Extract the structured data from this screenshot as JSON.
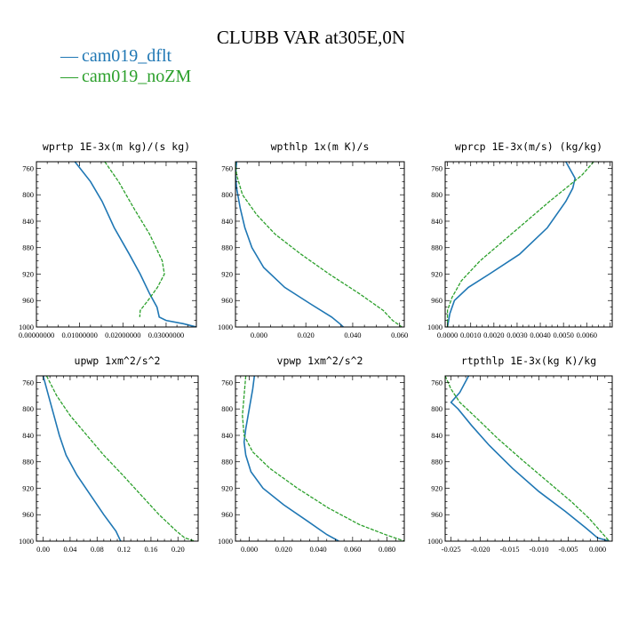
{
  "title": "CLUBB VAR at305E,0N",
  "legend": [
    {
      "label": "cam019_dflt",
      "color": "#1f77b4"
    },
    {
      "label": "cam019_noZM",
      "color": "#2ca02c"
    }
  ],
  "chart_data": [
    {
      "type": "line",
      "title": "wprtp  1E-3x(m kg)/(s kg)",
      "ylim": [
        1000,
        750
      ],
      "ylabel": "",
      "xlabel": "",
      "xlim": [
        0.0,
        0.037
      ],
      "xticks": [
        0.0,
        0.01,
        0.02,
        0.03
      ],
      "xtick_labels": [
        "0.00000000",
        "0.01000000",
        "0.02000000",
        "0.03000000"
      ],
      "yticks": [
        760,
        800,
        840,
        880,
        920,
        960,
        1000
      ],
      "series": [
        {
          "name": "cam019_dflt",
          "color": "#1f77b4",
          "dash": false,
          "points": [
            [
              0.0089,
              750
            ],
            [
              0.0125,
              780
            ],
            [
              0.0152,
              810
            ],
            [
              0.018,
              850
            ],
            [
              0.0215,
              890
            ],
            [
              0.024,
              920
            ],
            [
              0.0262,
              950
            ],
            [
              0.0279,
              970
            ],
            [
              0.0284,
              985
            ],
            [
              0.03,
              990
            ],
            [
              0.034,
              995
            ],
            [
              0.037,
              1000
            ]
          ]
        },
        {
          "name": "cam019_noZM",
          "color": "#2ca02c",
          "dash": true,
          "points": [
            [
              0.0158,
              750
            ],
            [
              0.019,
              780
            ],
            [
              0.0225,
              820
            ],
            [
              0.0262,
              860
            ],
            [
              0.0291,
              900
            ],
            [
              0.0296,
              920
            ],
            [
              0.028,
              940
            ],
            [
              0.0258,
              960
            ],
            [
              0.024,
              975
            ],
            [
              0.0239,
              985
            ]
          ]
        }
      ]
    },
    {
      "type": "line",
      "title": "wpthlp  1x(m K)/s",
      "ylim": [
        1000,
        750
      ],
      "ylabel": "",
      "xlabel": "",
      "xlim": [
        -0.01,
        0.062
      ],
      "xticks": [
        0.0,
        0.02,
        0.04,
        0.06
      ],
      "xtick_labels": [
        "0.000",
        "0.020",
        "0.040",
        "0.060"
      ],
      "yticks": [
        760,
        800,
        840,
        880,
        920,
        960,
        1000
      ],
      "series": [
        {
          "name": "cam019_dflt",
          "color": "#1f77b4",
          "dash": false,
          "points": [
            [
              -0.0095,
              750
            ],
            [
              -0.01,
              770
            ],
            [
              -0.0095,
              790
            ],
            [
              -0.008,
              820
            ],
            [
              -0.006,
              850
            ],
            [
              -0.003,
              880
            ],
            [
              0.002,
              910
            ],
            [
              0.011,
              940
            ],
            [
              0.022,
              965
            ],
            [
              0.031,
              985
            ],
            [
              0.0345,
              995
            ],
            [
              0.036,
              1000
            ]
          ]
        },
        {
          "name": "cam019_noZM",
          "color": "#2ca02c",
          "dash": true,
          "points": [
            [
              -0.01,
              750
            ],
            [
              -0.0095,
              770
            ],
            [
              -0.007,
              800
            ],
            [
              -0.001,
              830
            ],
            [
              0.007,
              860
            ],
            [
              0.018,
              890
            ],
            [
              0.03,
              920
            ],
            [
              0.043,
              950
            ],
            [
              0.053,
              975
            ],
            [
              0.057,
              990
            ],
            [
              0.061,
              1000
            ]
          ]
        }
      ]
    },
    {
      "type": "line",
      "title": "wprcp  1E-3x(m/s) (kg/kg)",
      "ylim": [
        1000,
        750
      ],
      "ylabel": "",
      "xlabel": "",
      "xlim": [
        -0.0001,
        0.0071
      ],
      "xticks": [
        0.0,
        0.001,
        0.002,
        0.003,
        0.004,
        0.005,
        0.006
      ],
      "xtick_labels": [
        "0.0000",
        "0.0010",
        "0.0020",
        "0.0030",
        "0.0040",
        "0.0050",
        "0.0060"
      ],
      "yticks": [
        760,
        800,
        840,
        880,
        920,
        960,
        1000
      ],
      "series": [
        {
          "name": "cam019_dflt",
          "color": "#1f77b4",
          "dash": false,
          "points": [
            [
              0.0051,
              750
            ],
            [
              0.0055,
              775
            ],
            [
              0.0054,
              790
            ],
            [
              0.0051,
              810
            ],
            [
              0.0043,
              850
            ],
            [
              0.0031,
              890
            ],
            [
              0.0018,
              920
            ],
            [
              0.0009,
              940
            ],
            [
              0.0003,
              960
            ],
            [
              0.0001,
              980
            ],
            [
              0.0,
              1000
            ]
          ]
        },
        {
          "name": "cam019_noZM",
          "color": "#2ca02c",
          "dash": true,
          "points": [
            [
              0.0063,
              750
            ],
            [
              0.0058,
              770
            ],
            [
              0.0051,
              790
            ],
            [
              0.0044,
              810
            ],
            [
              0.0034,
              840
            ],
            [
              0.0024,
              870
            ],
            [
              0.0014,
              900
            ],
            [
              0.0006,
              930
            ],
            [
              0.0002,
              955
            ],
            [
              0.0,
              975
            ],
            [
              0.0,
              1000
            ]
          ]
        }
      ]
    },
    {
      "type": "line",
      "title": "upwp  1xm^2/s^2",
      "ylim": [
        1000,
        750
      ],
      "ylabel": "",
      "xlabel": "",
      "xlim": [
        -0.01,
        0.23
      ],
      "xticks": [
        0.0,
        0.04,
        0.08,
        0.12,
        0.16,
        0.2
      ],
      "xtick_labels": [
        "0.00",
        "0.04",
        "0.08",
        "0.12",
        "0.16",
        "0.20"
      ],
      "yticks": [
        760,
        800,
        840,
        880,
        920,
        960,
        1000
      ],
      "series": [
        {
          "name": "cam019_dflt",
          "color": "#1f77b4",
          "dash": false,
          "points": [
            [
              0.0,
              750
            ],
            [
              0.008,
              780
            ],
            [
              0.016,
              810
            ],
            [
              0.024,
              840
            ],
            [
              0.034,
              870
            ],
            [
              0.05,
              900
            ],
            [
              0.07,
              930
            ],
            [
              0.09,
              960
            ],
            [
              0.108,
              985
            ],
            [
              0.115,
              1000
            ]
          ]
        },
        {
          "name": "cam019_noZM",
          "color": "#2ca02c",
          "dash": true,
          "points": [
            [
              0.005,
              750
            ],
            [
              0.02,
              780
            ],
            [
              0.04,
              810
            ],
            [
              0.065,
              840
            ],
            [
              0.09,
              870
            ],
            [
              0.118,
              900
            ],
            [
              0.145,
              930
            ],
            [
              0.172,
              960
            ],
            [
              0.198,
              985
            ],
            [
              0.21,
              995
            ],
            [
              0.225,
              1000
            ]
          ]
        }
      ]
    },
    {
      "type": "line",
      "title": "vpwp  1xm^2/s^2",
      "ylim": [
        1000,
        750
      ],
      "ylabel": "",
      "xlabel": "",
      "xlim": [
        -0.008,
        0.09
      ],
      "xticks": [
        0.0,
        0.02,
        0.04,
        0.06,
        0.08
      ],
      "xtick_labels": [
        "0.000",
        "0.020",
        "0.040",
        "0.060",
        "0.080"
      ],
      "yticks": [
        760,
        800,
        840,
        880,
        920,
        960,
        1000
      ],
      "series": [
        {
          "name": "cam019_dflt",
          "color": "#1f77b4",
          "dash": false,
          "points": [
            [
              0.003,
              750
            ],
            [
              0.002,
              770
            ],
            [
              0.0,
              800
            ],
            [
              -0.002,
              830
            ],
            [
              -0.003,
              850
            ],
            [
              -0.002,
              870
            ],
            [
              0.001,
              895
            ],
            [
              0.008,
              920
            ],
            [
              0.02,
              945
            ],
            [
              0.034,
              970
            ],
            [
              0.045,
              990
            ],
            [
              0.052,
              1000
            ]
          ]
        },
        {
          "name": "cam019_noZM",
          "color": "#2ca02c",
          "dash": true,
          "points": [
            [
              -0.002,
              750
            ],
            [
              -0.003,
              780
            ],
            [
              -0.004,
              810
            ],
            [
              -0.003,
              840
            ],
            [
              0.002,
              865
            ],
            [
              0.012,
              890
            ],
            [
              0.028,
              920
            ],
            [
              0.046,
              950
            ],
            [
              0.064,
              975
            ],
            [
              0.079,
              990
            ],
            [
              0.09,
              1000
            ]
          ]
        }
      ]
    },
    {
      "type": "line",
      "title": "rtpthlp  1E-3x(kg K)/kg",
      "ylim": [
        1000,
        750
      ],
      "ylabel": "",
      "xlabel": "",
      "xlim": [
        -0.026,
        0.0025
      ],
      "xticks": [
        -0.025,
        -0.02,
        -0.015,
        -0.01,
        -0.005,
        0.0
      ],
      "xtick_labels": [
        "-0.025",
        "-0.020",
        "-0.015",
        "-0.010",
        "-0.005",
        "0.000"
      ],
      "yticks": [
        760,
        800,
        840,
        880,
        920,
        960,
        1000
      ],
      "series": [
        {
          "name": "cam019_dflt",
          "color": "#1f77b4",
          "dash": false,
          "points": [
            [
              -0.022,
              750
            ],
            [
              -0.0235,
              775
            ],
            [
              -0.025,
              790
            ],
            [
              -0.0238,
              800
            ],
            [
              -0.0215,
              825
            ],
            [
              -0.0185,
              855
            ],
            [
              -0.0145,
              890
            ],
            [
              -0.01,
              925
            ],
            [
              -0.0055,
              955
            ],
            [
              -0.002,
              980
            ],
            [
              0.0,
              995
            ],
            [
              0.002,
              1000
            ]
          ]
        },
        {
          "name": "cam019_noZM",
          "color": "#2ca02c",
          "dash": true,
          "points": [
            [
              -0.026,
              750
            ],
            [
              -0.025,
              770
            ],
            [
              -0.0235,
              790
            ],
            [
              -0.0205,
              815
            ],
            [
              -0.017,
              845
            ],
            [
              -0.0125,
              880
            ],
            [
              -0.0085,
              910
            ],
            [
              -0.0045,
              940
            ],
            [
              -0.0015,
              965
            ],
            [
              0.0005,
              985
            ],
            [
              0.002,
              1000
            ]
          ]
        }
      ]
    }
  ]
}
